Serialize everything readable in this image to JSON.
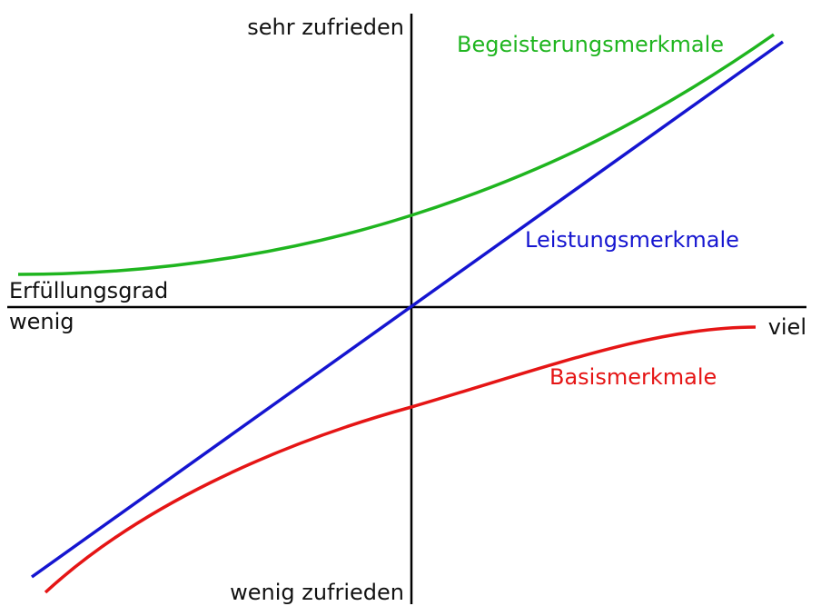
{
  "axes": {
    "y_top": "sehr zufrieden",
    "y_bottom": "wenig zufrieden",
    "x_title": "Erfüllungsgrad",
    "x_left": "wenig",
    "x_right": "viel"
  },
  "curves": [
    {
      "label": "Begeisterungsmerkmale"
    },
    {
      "label": "Leistungsmerkmale"
    },
    {
      "label": "Basismerkmale"
    }
  ]
}
